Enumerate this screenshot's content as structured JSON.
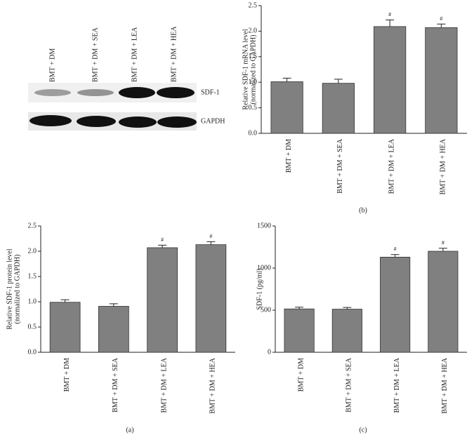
{
  "blot": {
    "lanes": [
      "BMT + DM",
      "BMT + DM + SEA",
      "BMT + DM + LEA",
      "BMT + DM + HEA"
    ],
    "bands": [
      "SDF-1",
      "GAPDH"
    ]
  },
  "chart_data": [
    {
      "type": "bar",
      "ylabel": [
        "Relative SDF-1 mRNA level",
        "(normalized to GAPDH)"
      ],
      "categories": [
        "BMT + DM",
        "BMT + DM + SEA",
        "BMT + DM + LEA",
        "BMT + DM + HEA"
      ],
      "values": [
        1.01,
        0.98,
        2.09,
        2.07
      ],
      "errors": [
        0.07,
        0.08,
        0.13,
        0.07
      ],
      "markers": [
        null,
        null,
        "#",
        "#"
      ],
      "color": "#808080",
      "ylim": [
        0,
        2.5
      ],
      "yticks": [
        {
          "value": 0,
          "label": "0.0"
        },
        {
          "value": 0.5,
          "label": "0.5"
        },
        {
          "value": 1,
          "label": "1.0"
        },
        {
          "value": 1.5,
          "label": "1.5"
        },
        {
          "value": 2,
          "label": "2.0"
        },
        {
          "value": 2.5,
          "label": "2.5"
        }
      ],
      "caption": "(b)"
    },
    {
      "type": "bar",
      "ylabel": [
        "Relative SDF-1 protein level",
        "(normalized to GAPDH)"
      ],
      "categories": [
        "BMT + DM",
        "BMT + DM + SEA",
        "BMT + DM + LEA",
        "BMT + DM + HEA"
      ],
      "values": [
        0.99,
        0.91,
        2.07,
        2.13
      ],
      "errors": [
        0.05,
        0.05,
        0.05,
        0.06
      ],
      "markers": [
        null,
        null,
        "#",
        "#"
      ],
      "color": "#808080",
      "ylim": [
        0,
        2.5
      ],
      "yticks": [
        {
          "value": 0,
          "label": "0.0"
        },
        {
          "value": 0.5,
          "label": "0.5"
        },
        {
          "value": 1,
          "label": "1.0"
        },
        {
          "value": 1.5,
          "label": "1.5"
        },
        {
          "value": 2,
          "label": "2.0"
        },
        {
          "value": 2.5,
          "label": "2.5"
        }
      ],
      "caption": "(a)"
    },
    {
      "type": "bar",
      "ylabel": [
        "SDF-1 (pg/ml)"
      ],
      "categories": [
        "BMT + DM",
        "BMT + DM + SEA",
        "BMT + DM + LEA",
        "BMT + DM + HEA"
      ],
      "values": [
        515,
        512,
        1130,
        1200
      ],
      "errors": [
        20,
        20,
        30,
        35
      ],
      "markers": [
        null,
        null,
        "#",
        "#"
      ],
      "color": "#808080",
      "ylim": [
        0,
        1500
      ],
      "yticks": [
        0,
        500,
        1000,
        1500
      ],
      "caption": "(c)"
    }
  ]
}
